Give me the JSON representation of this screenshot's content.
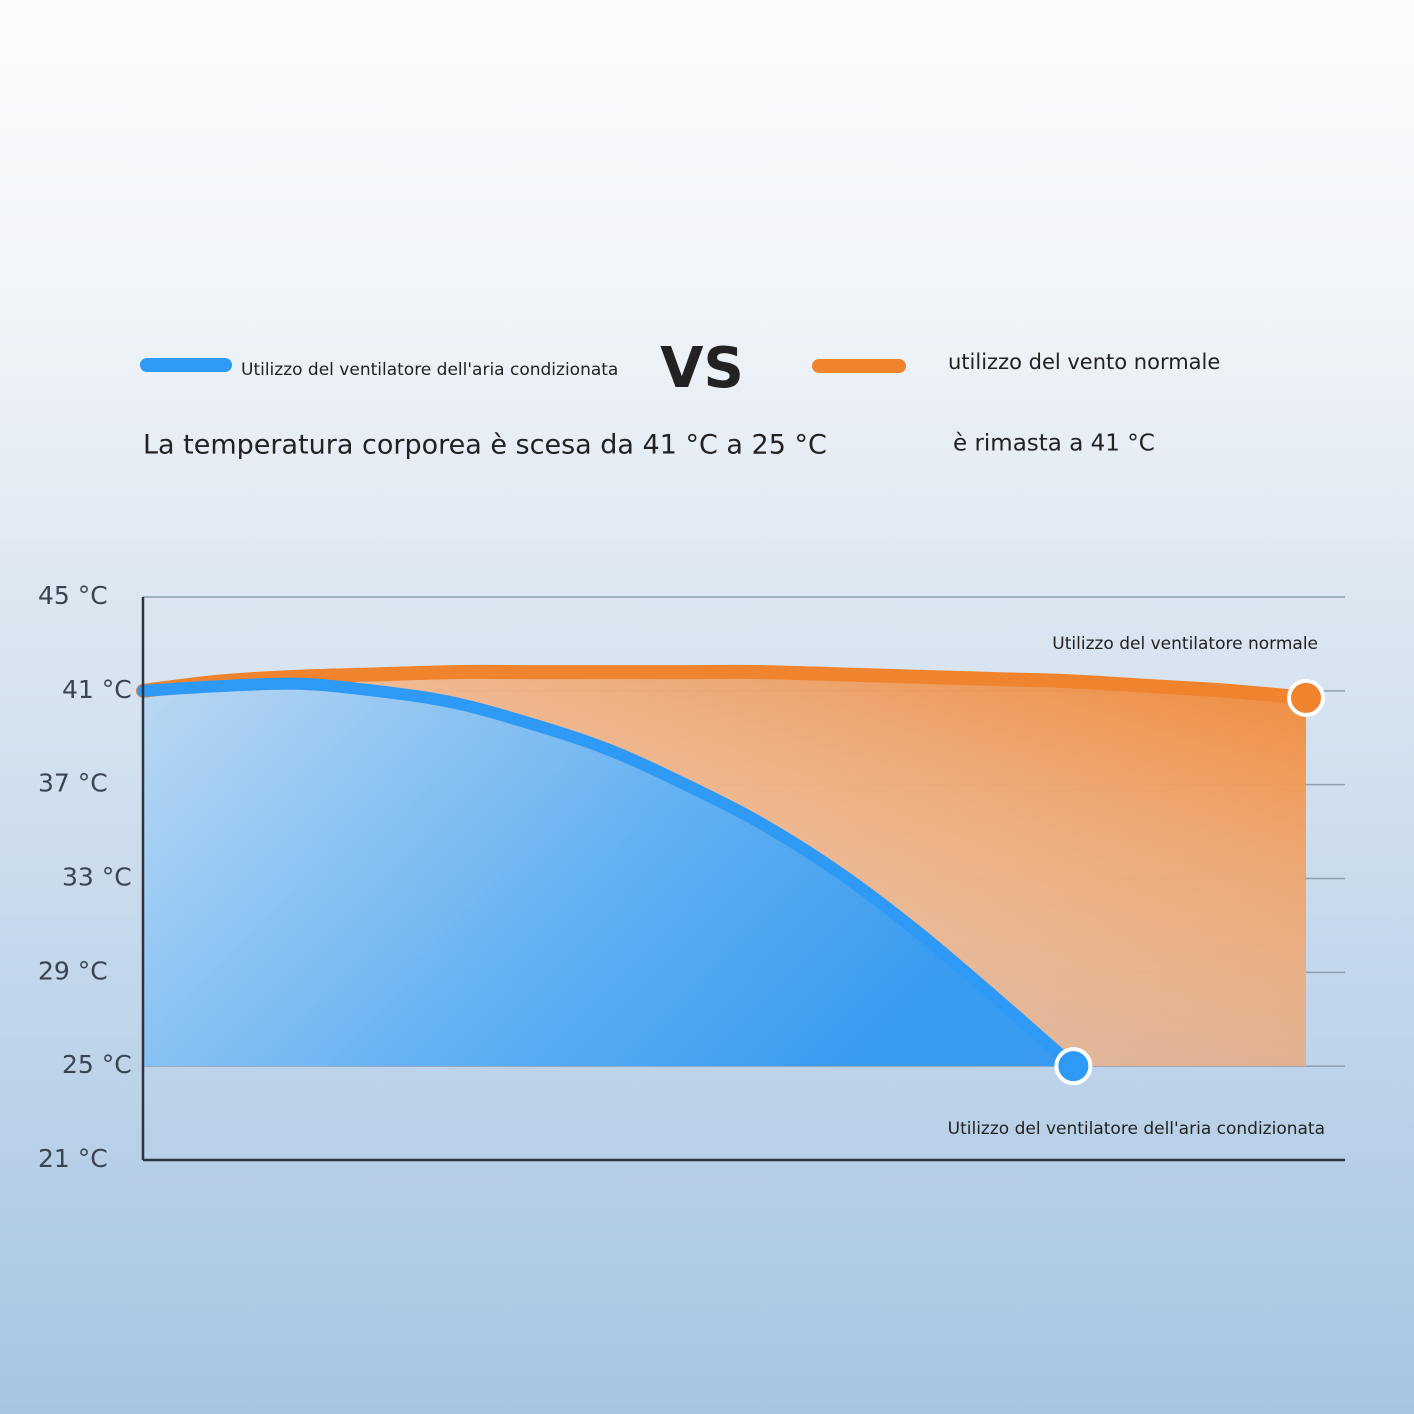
{
  "chart_data": {
    "type": "line",
    "title": "VS",
    "subtitles": [
      "La temperatura corporea è scesa da 41 °C a 25 °C",
      "è rimasta a 41 °C"
    ],
    "categories": [
      null,
      null,
      null,
      null,
      null,
      null,
      null,
      null,
      null,
      null,
      null,
      null,
      null,
      null,
      null,
      null
    ],
    "series": [
      {
        "name": "Utilizzo del ventilatore dell'aria condizionata",
        "color": "#2f9af5",
        "values": [
          41.0,
          41.2,
          41.3,
          41.0,
          40.5,
          39.6,
          38.5,
          37.0,
          35.3,
          33.2,
          30.7,
          27.9,
          25.0,
          null,
          null,
          null
        ]
      },
      {
        "name": "utilizzo del vento normale",
        "color": "#f0832e",
        "values": [
          41.0,
          41.4,
          41.6,
          41.7,
          41.8,
          41.8,
          41.8,
          41.8,
          41.8,
          41.7,
          41.6,
          41.5,
          41.4,
          41.2,
          41.0,
          40.7
        ]
      }
    ],
    "annotations": [
      "Utilizzo del ventilatore normale",
      "Utilizzo del ventilatore dell'aria condizionata"
    ],
    "ylim": [
      21,
      45
    ],
    "yticks": [
      {
        "value": 45,
        "label": "45 °C"
      },
      {
        "value": 41,
        "label": "41 °C"
      },
      {
        "value": 37,
        "label": "37 °C"
      },
      {
        "value": 33,
        "label": "33 °C"
      },
      {
        "value": 29,
        "label": "29 °C"
      },
      {
        "value": 25,
        "label": "25 °C"
      },
      {
        "value": 21,
        "label": "21 °C"
      }
    ],
    "grid": true
  }
}
